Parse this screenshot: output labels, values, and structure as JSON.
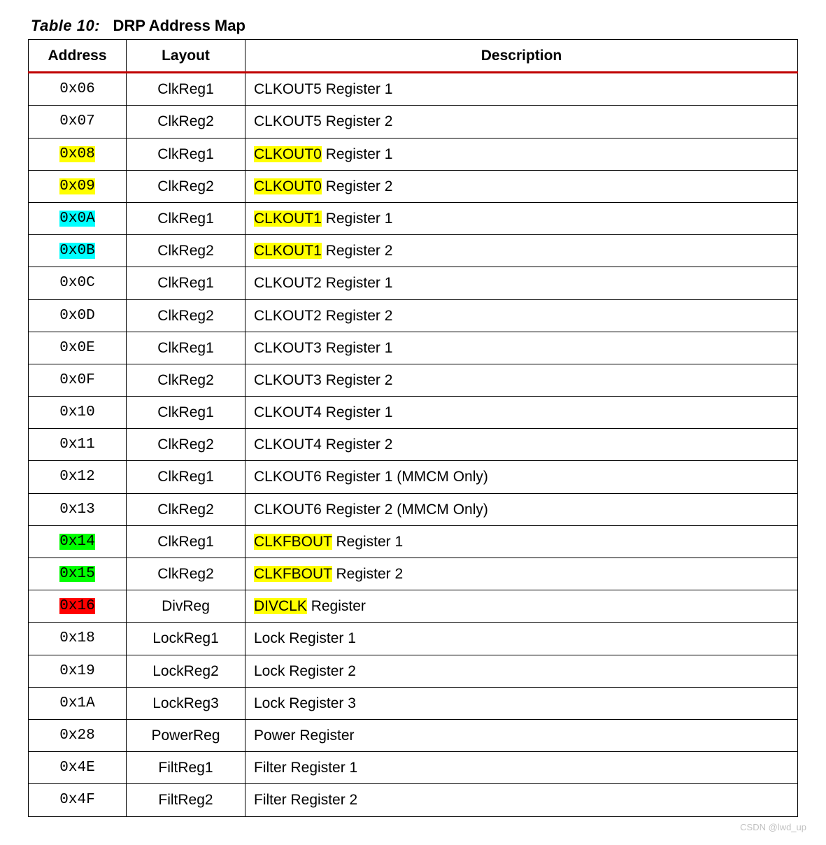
{
  "caption": {
    "lead": "Table  10:",
    "title": "DRP Address Map"
  },
  "columns": {
    "address": "Address",
    "layout": "Layout",
    "description": "Description"
  },
  "highlight_colors": {
    "yellow": "#ffff00",
    "cyan": "#00ffff",
    "green": "#00ff00",
    "red": "#ff0000"
  },
  "rows": [
    {
      "address": "0x06",
      "addr_hl": null,
      "layout": "ClkReg1",
      "desc_pre": "",
      "desc_hl": null,
      "desc_post": "CLKOUT5 Register 1"
    },
    {
      "address": "0x07",
      "addr_hl": null,
      "layout": "ClkReg2",
      "desc_pre": "",
      "desc_hl": null,
      "desc_post": "CLKOUT5 Register 2"
    },
    {
      "address": "0x08",
      "addr_hl": "yellow",
      "layout": "ClkReg1",
      "desc_pre": "",
      "desc_hl": "CLKOUT0",
      "desc_post": " Register 1"
    },
    {
      "address": "0x09",
      "addr_hl": "yellow",
      "layout": "ClkReg2",
      "desc_pre": "",
      "desc_hl": "CLKOUT0",
      "desc_post": " Register 2"
    },
    {
      "address": "0x0A",
      "addr_hl": "cyan",
      "layout": "ClkReg1",
      "desc_pre": "",
      "desc_hl": "CLKOUT1",
      "desc_post": " Register 1"
    },
    {
      "address": "0x0B",
      "addr_hl": "cyan",
      "layout": "ClkReg2",
      "desc_pre": "",
      "desc_hl": "CLKOUT1",
      "desc_post": " Register 2"
    },
    {
      "address": "0x0C",
      "addr_hl": null,
      "layout": "ClkReg1",
      "desc_pre": "",
      "desc_hl": null,
      "desc_post": "CLKOUT2 Register 1"
    },
    {
      "address": "0x0D",
      "addr_hl": null,
      "layout": "ClkReg2",
      "desc_pre": "",
      "desc_hl": null,
      "desc_post": "CLKOUT2 Register 2"
    },
    {
      "address": "0x0E",
      "addr_hl": null,
      "layout": "ClkReg1",
      "desc_pre": "",
      "desc_hl": null,
      "desc_post": "CLKOUT3 Register 1"
    },
    {
      "address": "0x0F",
      "addr_hl": null,
      "layout": "ClkReg2",
      "desc_pre": "",
      "desc_hl": null,
      "desc_post": "CLKOUT3 Register 2"
    },
    {
      "address": "0x10",
      "addr_hl": null,
      "layout": "ClkReg1",
      "desc_pre": "",
      "desc_hl": null,
      "desc_post": "CLKOUT4 Register 1"
    },
    {
      "address": "0x11",
      "addr_hl": null,
      "layout": "ClkReg2",
      "desc_pre": "",
      "desc_hl": null,
      "desc_post": "CLKOUT4 Register 2"
    },
    {
      "address": "0x12",
      "addr_hl": null,
      "layout": "ClkReg1",
      "desc_pre": "",
      "desc_hl": null,
      "desc_post": "CLKOUT6 Register 1 (MMCM Only)"
    },
    {
      "address": "0x13",
      "addr_hl": null,
      "layout": "ClkReg2",
      "desc_pre": "",
      "desc_hl": null,
      "desc_post": "CLKOUT6 Register 2 (MMCM Only)"
    },
    {
      "address": "0x14",
      "addr_hl": "green",
      "layout": "ClkReg1",
      "desc_pre": "",
      "desc_hl": "CLKFBOUT",
      "desc_post": " Register 1"
    },
    {
      "address": "0x15",
      "addr_hl": "green",
      "layout": "ClkReg2",
      "desc_pre": "",
      "desc_hl": "CLKFBOUT",
      "desc_post": " Register 2"
    },
    {
      "address": "0x16",
      "addr_hl": "red",
      "layout": "DivReg",
      "desc_pre": "",
      "desc_hl": "DIVCLK",
      "desc_post": " Register"
    },
    {
      "address": "0x18",
      "addr_hl": null,
      "layout": "LockReg1",
      "desc_pre": "",
      "desc_hl": null,
      "desc_post": "Lock Register 1"
    },
    {
      "address": "0x19",
      "addr_hl": null,
      "layout": "LockReg2",
      "desc_pre": "",
      "desc_hl": null,
      "desc_post": "Lock Register 2"
    },
    {
      "address": "0x1A",
      "addr_hl": null,
      "layout": "LockReg3",
      "desc_pre": "",
      "desc_hl": null,
      "desc_post": "Lock Register 3"
    },
    {
      "address": "0x28",
      "addr_hl": null,
      "layout": "PowerReg",
      "desc_pre": "",
      "desc_hl": null,
      "desc_post": "Power Register"
    },
    {
      "address": "0x4E",
      "addr_hl": null,
      "layout": "FiltReg1",
      "desc_pre": "",
      "desc_hl": null,
      "desc_post": "Filter Register 1"
    },
    {
      "address": "0x4F",
      "addr_hl": null,
      "layout": "FiltReg2",
      "desc_pre": "",
      "desc_hl": null,
      "desc_post": "Filter Register 2"
    }
  ],
  "watermark": "CSDN @lwd_up"
}
